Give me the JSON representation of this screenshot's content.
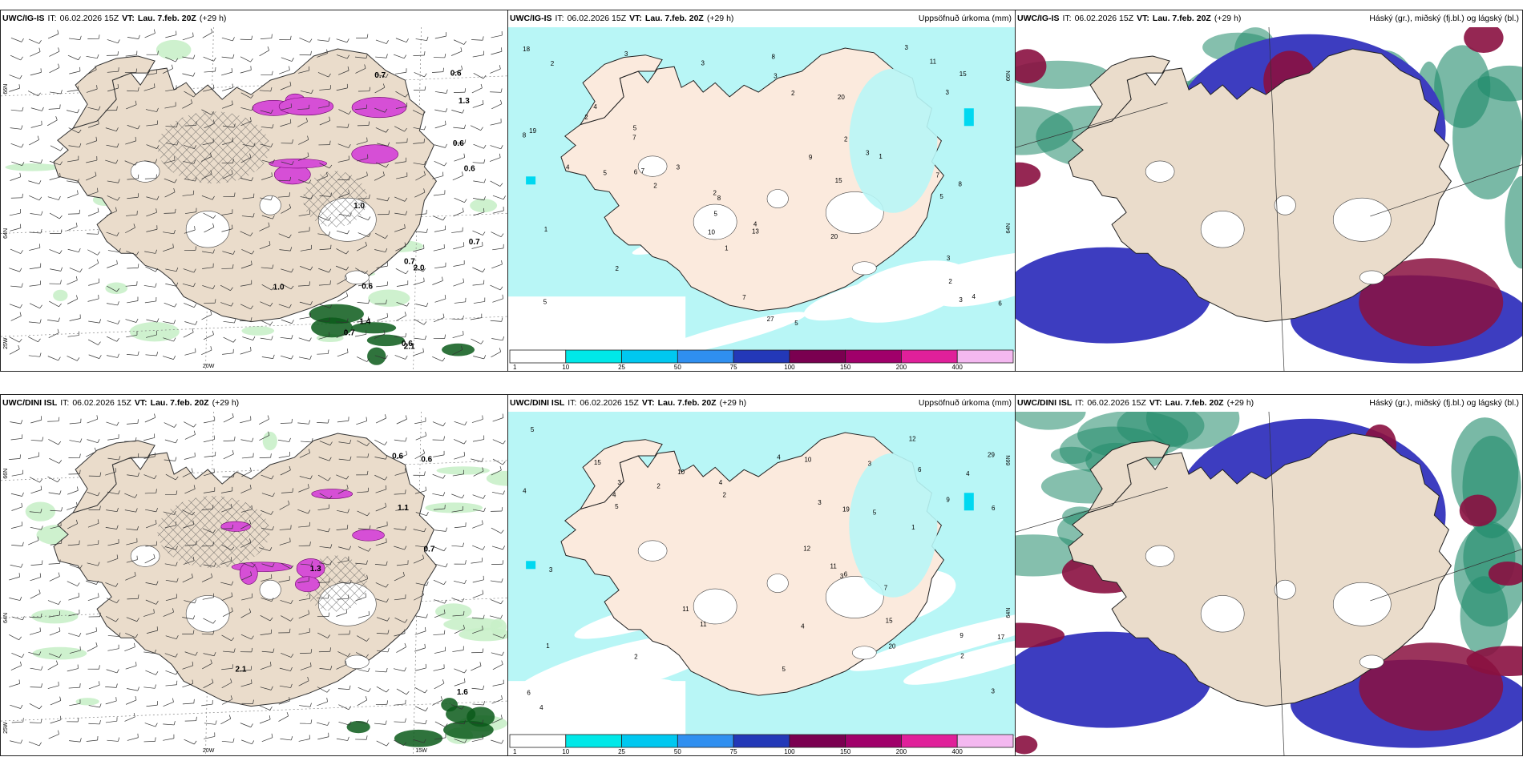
{
  "panels": [
    {
      "id": "p1",
      "model": "UWC/IG-IS",
      "it_label": "IT:",
      "it_value": "06.02.2026 15Z",
      "vt_label": "VT:",
      "vt_value": "Lau. 7.feb. 20Z",
      "lead": "(+29 h)",
      "right_title": "",
      "kind": "wind",
      "lat_labels": [
        "66N",
        "64N",
        "25W"
      ],
      "lon_labels": [
        "20W"
      ],
      "values": [
        "0.6",
        "0.6",
        "0.6",
        "1.3",
        "0.7",
        "0.6",
        "0.7",
        "1.0",
        "0.6",
        "0.7",
        "1.0",
        "0.7",
        "2.0",
        "2.1",
        "1.4"
      ]
    },
    {
      "id": "p2",
      "model": "UWC/IG-IS",
      "it_label": "IT:",
      "it_value": "06.02.2026 15Z",
      "vt_label": "VT:",
      "vt_value": "Lau. 7.feb. 20Z",
      "lead": "(+29 h)",
      "right_title": "Uppsöfnuð úrkoma (mm)",
      "kind": "precip",
      "lat_labels": [
        "66N",
        "64N"
      ],
      "values": [
        "7",
        "7",
        "1",
        "2",
        "11",
        "3",
        "2",
        "3",
        "4",
        "5",
        "2",
        "15",
        "10",
        "6",
        "5",
        "7",
        "8",
        "2",
        "8",
        "4",
        "3",
        "5",
        "1",
        "3",
        "2",
        "4",
        "3",
        "7",
        "13",
        "20",
        "20",
        "19",
        "27",
        "18",
        "3",
        "4",
        "5",
        "5",
        "2",
        "2",
        "3",
        "2",
        "15",
        "1",
        "8",
        "8",
        "6",
        "5",
        "9",
        "3",
        "3"
      ]
    },
    {
      "id": "p3",
      "model": "UWC/IG-IS",
      "it_label": "IT:",
      "it_value": "06.02.2026 15Z",
      "vt_label": "VT:",
      "vt_value": "Lau. 7.feb. 20Z",
      "lead": "(+29 h)",
      "right_title": "Háský (gr.), miðský (fj.bl.) og lágský (bl.)",
      "kind": "cloud"
    },
    {
      "id": "p4",
      "model": "UWC/DINI ISL",
      "it_label": "IT:",
      "it_value": "06.02.2026 15Z",
      "vt_label": "VT:",
      "vt_value": "Lau. 7.feb. 20Z",
      "lead": "(+29 h)",
      "right_title": "",
      "kind": "wind",
      "lat_labels": [
        "66N",
        "64N",
        "25W"
      ],
      "lon_labels": [
        "20W",
        "15W"
      ],
      "values": [
        "0.6",
        "0.6",
        "0.7",
        "1.3",
        "1.1",
        "2.1",
        "1.6"
      ]
    },
    {
      "id": "p5",
      "model": "UWC/DINI ISL",
      "it_label": "IT:",
      "it_value": "06.02.2026 15Z",
      "vt_label": "VT:",
      "vt_value": "Lau. 7.feb. 20Z",
      "lead": "(+29 h)",
      "right_title": "Uppsöfnuð úrkoma (mm)",
      "kind": "precip",
      "lat_labels": [
        "66N",
        "64N"
      ],
      "values": [
        "4",
        "2",
        "3",
        "4",
        "5",
        "1",
        "12",
        "12",
        "10",
        "4",
        "7",
        "6",
        "9",
        "5",
        "11",
        "2",
        "3",
        "6",
        "3",
        "4",
        "9",
        "10",
        "15",
        "15",
        "19",
        "20",
        "29",
        "11",
        "5",
        "6",
        "3",
        "2",
        "4",
        "6",
        "5",
        "4",
        "3",
        "1",
        "11",
        "2",
        "17",
        "4",
        "3"
      ]
    },
    {
      "id": "p6",
      "model": "UWC/DINI ISL",
      "it_label": "IT:",
      "it_value": "06.02.2026 15Z",
      "vt_label": "VT:",
      "vt_value": "Lau. 7.feb. 20Z",
      "lead": "(+29 h)",
      "right_title": "Háský (gr.), miðský (fj.bl.) og lágský (bl.)",
      "kind": "cloud"
    }
  ],
  "colorbar": {
    "ticks": [
      "1",
      "10",
      "25",
      "50",
      "75",
      "100",
      "150",
      "200",
      "400"
    ],
    "colors": [
      "#ffffff",
      "#00e8e8",
      "#00c8f0",
      "#2f8ff0",
      "#2338b8",
      "#7a0050",
      "#a0006a",
      "#e0209a",
      "#f4b8f0"
    ]
  },
  "colors": {
    "land": "#eadccb",
    "land_precip": "#fbeadd",
    "sea_precip": "#b8f6f6",
    "green_light": "#c9f0c9",
    "green_dark": "#0a5a1a",
    "magenta": "#d64fd6",
    "cloud_high": "#208a6a",
    "cloud_mid": "#3d3dc0",
    "cloud_low": "#8a1040"
  }
}
